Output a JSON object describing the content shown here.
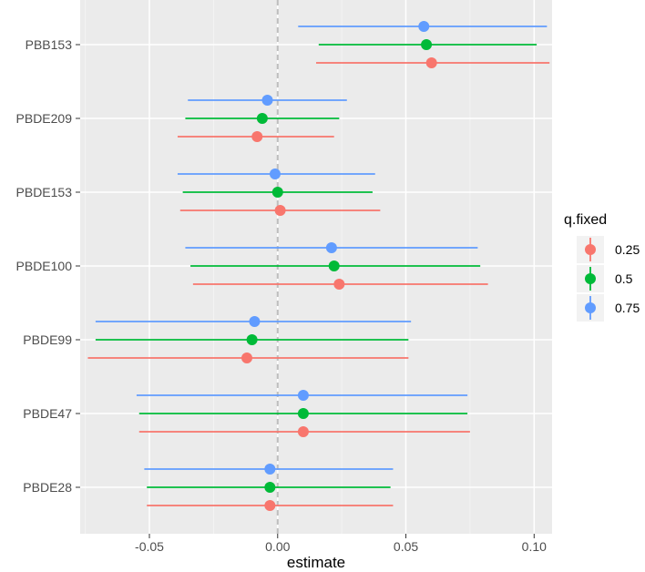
{
  "chart_data": {
    "type": "scatter",
    "subtype": "point-range",
    "title": "",
    "xlabel": "estimate",
    "ylabel": "",
    "xlim": [
      -0.077,
      0.107
    ],
    "xticks": [
      -0.05,
      0.0,
      0.05,
      0.1
    ],
    "xtick_labels": [
      "-0.05",
      "0.00",
      "0.05",
      "0.10"
    ],
    "reference_line": {
      "x": 0,
      "style": "dashed"
    },
    "categories": [
      "PBB153",
      "PBDE209",
      "PBDE153",
      "PBDE100",
      "PBDE99",
      "PBDE47",
      "PBDE28"
    ],
    "grid": true,
    "legend": {
      "title": "q.fixed",
      "position": "right"
    },
    "series": [
      {
        "name": "0.25",
        "color": "#F8766D",
        "points": [
          {
            "category": "PBB153",
            "estimate": 0.06,
            "lower": 0.015,
            "upper": 0.106
          },
          {
            "category": "PBDE209",
            "estimate": -0.008,
            "lower": -0.039,
            "upper": 0.022
          },
          {
            "category": "PBDE153",
            "estimate": 0.001,
            "lower": -0.038,
            "upper": 0.04
          },
          {
            "category": "PBDE100",
            "estimate": 0.024,
            "lower": -0.033,
            "upper": 0.082
          },
          {
            "category": "PBDE99",
            "estimate": -0.012,
            "lower": -0.074,
            "upper": 0.051
          },
          {
            "category": "PBDE47",
            "estimate": 0.01,
            "lower": -0.054,
            "upper": 0.075
          },
          {
            "category": "PBDE28",
            "estimate": -0.003,
            "lower": -0.051,
            "upper": 0.045
          }
        ]
      },
      {
        "name": "0.5",
        "color": "#00BA38",
        "points": [
          {
            "category": "PBB153",
            "estimate": 0.058,
            "lower": 0.016,
            "upper": 0.101
          },
          {
            "category": "PBDE209",
            "estimate": -0.006,
            "lower": -0.036,
            "upper": 0.024
          },
          {
            "category": "PBDE153",
            "estimate": 0.0,
            "lower": -0.037,
            "upper": 0.037
          },
          {
            "category": "PBDE100",
            "estimate": 0.022,
            "lower": -0.034,
            "upper": 0.079
          },
          {
            "category": "PBDE99",
            "estimate": -0.01,
            "lower": -0.071,
            "upper": 0.051
          },
          {
            "category": "PBDE47",
            "estimate": 0.01,
            "lower": -0.054,
            "upper": 0.074
          },
          {
            "category": "PBDE28",
            "estimate": -0.003,
            "lower": -0.051,
            "upper": 0.044
          }
        ]
      },
      {
        "name": "0.75",
        "color": "#619CFF",
        "points": [
          {
            "category": "PBB153",
            "estimate": 0.057,
            "lower": 0.008,
            "upper": 0.105
          },
          {
            "category": "PBDE209",
            "estimate": -0.004,
            "lower": -0.035,
            "upper": 0.027
          },
          {
            "category": "PBDE153",
            "estimate": -0.001,
            "lower": -0.039,
            "upper": 0.038
          },
          {
            "category": "PBDE100",
            "estimate": 0.021,
            "lower": -0.036,
            "upper": 0.078
          },
          {
            "category": "PBDE99",
            "estimate": -0.009,
            "lower": -0.071,
            "upper": 0.052
          },
          {
            "category": "PBDE47",
            "estimate": 0.01,
            "lower": -0.055,
            "upper": 0.074
          },
          {
            "category": "PBDE28",
            "estimate": -0.003,
            "lower": -0.052,
            "upper": 0.045
          }
        ]
      }
    ]
  }
}
